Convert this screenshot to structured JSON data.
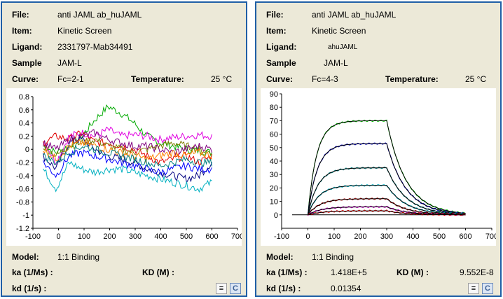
{
  "panels": [
    {
      "file_label": "File:",
      "file_value": "anti JAML ab_huJAML",
      "item_label": "Item:",
      "item_value": "Kinetic Screen",
      "ligand_label": "Ligand:",
      "ligand_value": "2331797-Mab34491",
      "sample_label": "Sample",
      "sample_value": "JAM-L",
      "curve_label": "Curve:",
      "curve_value": "Fc=2-1",
      "temperature_label": "Temperature:",
      "temperature_value": "25 °C",
      "model_label": "Model:",
      "model_value": "1:1 Binding",
      "ka_label": "ka (1/Ms) :",
      "ka_value": "",
      "KD_label": "KD (M) :",
      "KD_value": "",
      "kd_label": "kd (1/s) :",
      "kd_value": ""
    },
    {
      "file_label": "File:",
      "file_value": "anti JAML ab_huJAML",
      "item_label": "Item:",
      "item_value": "Kinetic Screen",
      "ligand_label": "Ligand:",
      "ligand_value": "ahuJAML",
      "sample_label": "Sample",
      "sample_value": "JAM-L",
      "curve_label": "Curve:",
      "curve_value": "Fc=4-3",
      "temperature_label": "Temperature:",
      "temperature_value": "25 °C",
      "model_label": "Model:",
      "model_value": "1:1 Binding",
      "ka_label": "ka (1/Ms) :",
      "ka_value": "1.418E+5",
      "KD_label": "KD (M) :",
      "KD_value": "9.552E-8",
      "kd_label": "kd (1/s) :",
      "kd_value": "0.01354"
    }
  ],
  "icons": {
    "note": "notepad-icon",
    "c_button": "C"
  },
  "chart_data": [
    {
      "type": "line",
      "title": "",
      "xlabel": "",
      "ylabel": "",
      "xlim": [
        -100,
        700
      ],
      "ylim": [
        -1.2,
        0.8
      ],
      "xticks": [
        -100,
        0,
        100,
        200,
        300,
        400,
        500,
        600,
        700
      ],
      "yticks": [
        -1.2,
        -1,
        -0.8,
        -0.6,
        -0.4,
        -0.2,
        0,
        0.2,
        0.4,
        0.6,
        0.8
      ],
      "ytick_labels": [
        "-1.2",
        "-1",
        "-0.8",
        "-0.6",
        "-0.4",
        "-0.2",
        "0",
        "0.2",
        "0.4",
        "0.6",
        "0.8"
      ],
      "x_range": [
        -60,
        600
      ],
      "series": [
        {
          "color": "#00aa00",
          "offsets": [
            0.05,
            -0.05,
            0.05,
            0.2,
            0.45,
            0.65,
            0.55,
            0.4,
            0.2,
            0.1,
            0.05,
            0.0,
            -0.02,
            -0.05
          ]
        },
        {
          "color": "#e000e0",
          "offsets": [
            0.15,
            -0.2,
            0.2,
            0.25,
            0.2,
            0.3,
            0.2,
            0.22,
            0.2,
            0.15,
            0.18,
            0.2,
            0.22,
            0.2
          ]
        },
        {
          "color": "#000080",
          "offsets": [
            -0.1,
            -0.3,
            0.1,
            0.15,
            0.0,
            -0.1,
            -0.15,
            -0.2,
            -0.3,
            -0.35,
            -0.4,
            -0.45,
            -0.4,
            -0.2
          ]
        },
        {
          "color": "#00b0c0",
          "offsets": [
            -0.3,
            -0.6,
            -0.2,
            -0.3,
            -0.35,
            -0.3,
            -0.3,
            -0.35,
            -0.4,
            -0.45,
            -0.5,
            -0.55,
            -0.6,
            -0.5
          ]
        },
        {
          "color": "#e00000",
          "offsets": [
            0.1,
            0.2,
            0.15,
            0.25,
            0.1,
            0.1,
            0.05,
            0.0,
            -0.1,
            -0.2,
            -0.15,
            -0.1,
            -0.2,
            -0.1
          ]
        },
        {
          "color": "#808000",
          "offsets": [
            0.05,
            -0.1,
            0.05,
            0.1,
            0.15,
            0.05,
            0.0,
            -0.05,
            0.0,
            0.05,
            0.1,
            0.05,
            0.0,
            -0.05
          ]
        },
        {
          "color": "#0000ff",
          "offsets": [
            -0.2,
            -0.4,
            -0.1,
            -0.05,
            -0.1,
            -0.15,
            -0.2,
            -0.25,
            -0.3,
            -0.35,
            -0.3,
            -0.25,
            -0.3,
            -0.3
          ]
        },
        {
          "color": "#800080",
          "offsets": [
            0.1,
            0.0,
            0.15,
            0.2,
            0.25,
            0.15,
            0.1,
            0.05,
            0.05,
            0.0,
            -0.05,
            0.0,
            0.05,
            0.0
          ]
        },
        {
          "color": "#ff8000",
          "offsets": [
            0.0,
            -0.15,
            0.05,
            0.1,
            0.05,
            0.0,
            -0.05,
            -0.1,
            -0.15,
            -0.1,
            -0.05,
            -0.1,
            -0.05,
            -0.1
          ]
        },
        {
          "color": "#008080",
          "offsets": [
            -0.1,
            -0.2,
            -0.05,
            0.05,
            0.0,
            -0.05,
            -0.1,
            -0.15,
            -0.2,
            -0.25,
            -0.2,
            -0.15,
            -0.2,
            -0.2
          ]
        }
      ]
    },
    {
      "type": "line",
      "title": "",
      "xlabel": "",
      "ylabel": "",
      "xlim": [
        -100,
        700
      ],
      "ylim": [
        -10,
        90
      ],
      "xticks": [
        -100,
        0,
        100,
        200,
        300,
        400,
        500,
        600,
        700
      ],
      "yticks": [
        0,
        10,
        20,
        30,
        40,
        50,
        60,
        70,
        80,
        90
      ],
      "ytick_labels": [
        "0",
        "10",
        "20",
        "30",
        "40",
        "50",
        "60",
        "70",
        "80",
        "90"
      ],
      "association_end_s": 300,
      "dissociation_end_s": 600,
      "kobs_per_s": [
        0.03,
        0.028,
        0.026,
        0.024,
        0.022,
        0.02,
        0.018
      ],
      "kd_per_s": 0.01354,
      "plateau_values": [
        70,
        53,
        35,
        22,
        12,
        6,
        3
      ],
      "series_colors": [
        "#00c000",
        "#0000c0",
        "#008080",
        "#00b0c0",
        "#a00000",
        "#c000c0",
        "#e00000"
      ],
      "fit_color": "#000000"
    }
  ]
}
